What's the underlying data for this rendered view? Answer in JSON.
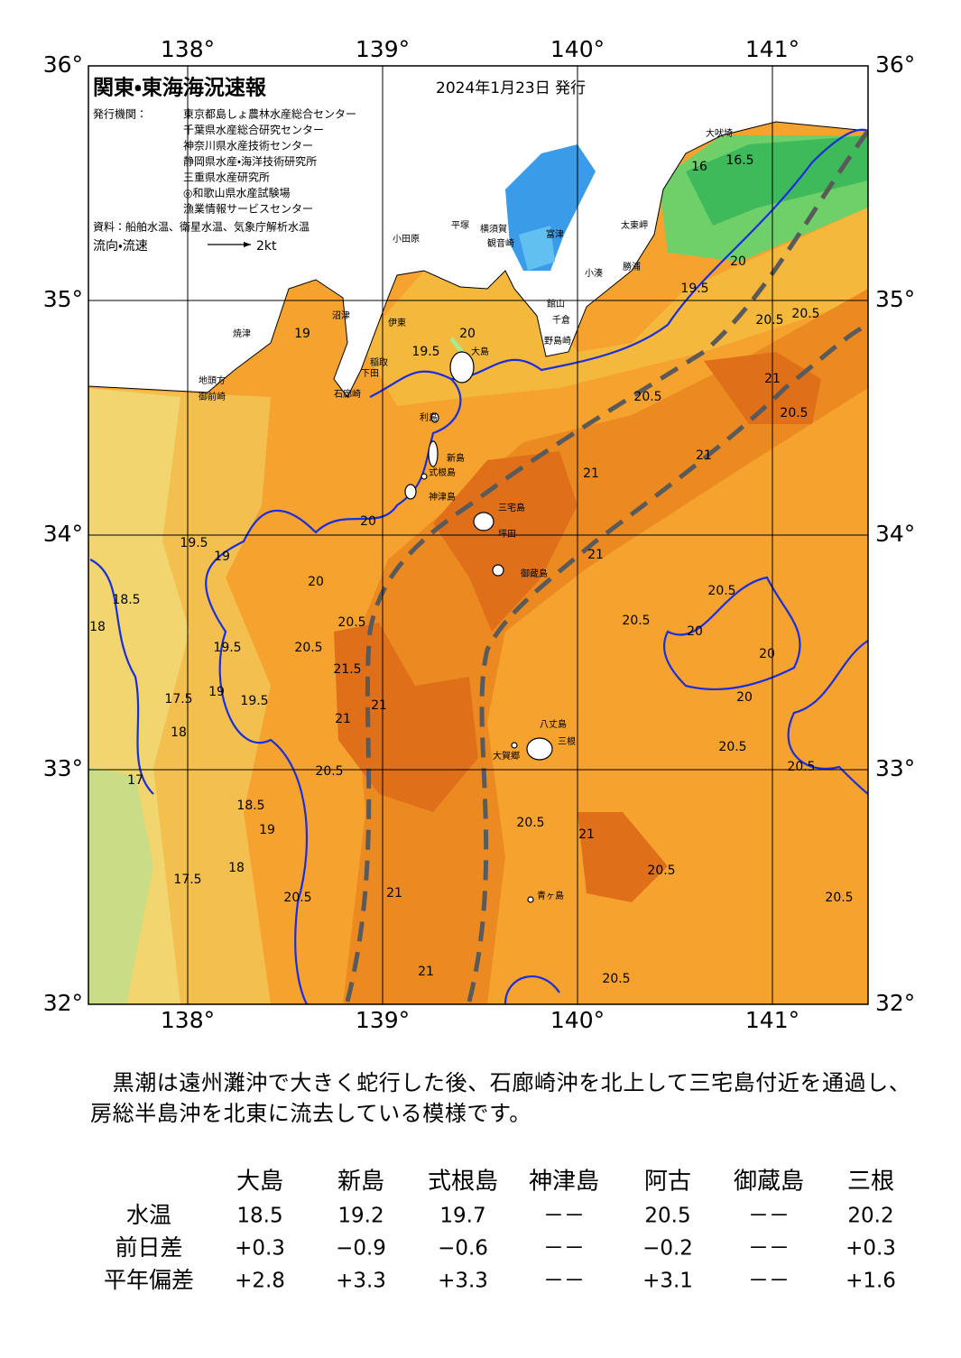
{
  "header": {
    "title": "関東・東海海況速報",
    "date": "2024年1月23日 発行",
    "issuer_label": "発行機関：",
    "issuers": [
      "東京都島しょ農林水産総合センター",
      "千葉県水産総合研究センター",
      "神奈川県水産技術センター",
      "静岡県水産・海洋技術研究所",
      "三重県水産研究所",
      "◎和歌山県水産試験場",
      "漁業情報サービスセンター"
    ],
    "source": "資料：船舶水温、衛星水温、気象庁解析水温",
    "flow_label": "流向・流速",
    "flow_scale": "2kt"
  },
  "map": {
    "lon_labels": [
      "138°",
      "139°",
      "140°",
      "141°"
    ],
    "lat_labels": [
      "36°",
      "35°",
      "34°",
      "33°",
      "32°"
    ],
    "place_names": [
      "大吠埼",
      "太東岬",
      "勝浦",
      "小湊",
      "館山",
      "千倉",
      "野島崎",
      "富津",
      "観音崎",
      "横須賀",
      "平塚",
      "小田原",
      "伊東",
      "稲取",
      "下田",
      "石廊崎",
      "沼津",
      "焼津",
      "地頭方",
      "御前崎",
      "大島",
      "利島",
      "新島",
      "式根島",
      "神津島",
      "三宅島",
      "坪田",
      "御蔵島",
      "八丈島",
      "三根",
      "大賀郷",
      "青ヶ島"
    ],
    "contour_labels": [
      "19.5",
      "20",
      "20.5",
      "20.5",
      "21",
      "20.5",
      "21",
      "21",
      "21",
      "20.5",
      "20.5",
      "20",
      "20",
      "20",
      "20.5",
      "20.5",
      "20.5",
      "20.5",
      "21",
      "21",
      "21",
      "20.5",
      "20.5",
      "21",
      "21",
      "21.5",
      "20.5",
      "20.5",
      "20.5",
      "20",
      "19.5",
      "19",
      "18.5",
      "18",
      "17.5",
      "18",
      "17",
      "18.5",
      "19",
      "18",
      "17.5",
      "20.5",
      "19.5",
      "19",
      "19.5",
      "20",
      "19",
      "16",
      "16.5",
      "20",
      "19.5",
      "20.5"
    ]
  },
  "description": "　黒潮は遠州灘沖で大きく蛇行した後、石廊崎沖を北上して三宅島付近を通過し、房総半島沖を北東に流去している模様です。",
  "table": {
    "columns": [
      "大島",
      "新島",
      "式根島",
      "神津島",
      "阿古",
      "御蔵島",
      "三根"
    ],
    "rows": [
      {
        "label": "水温",
        "values": [
          "18.5",
          "19.2",
          "19.7",
          "－－",
          "20.5",
          "－－",
          "20.2"
        ]
      },
      {
        "label": "前日差",
        "values": [
          "+0.3",
          "−0.9",
          "−0.6",
          "－－",
          "−0.2",
          "－－",
          "+0.3"
        ]
      },
      {
        "label": "平年偏差",
        "values": [
          "+2.8",
          "+3.3",
          "+3.3",
          "－－",
          "+3.1",
          "－－",
          "+1.6"
        ]
      }
    ]
  }
}
